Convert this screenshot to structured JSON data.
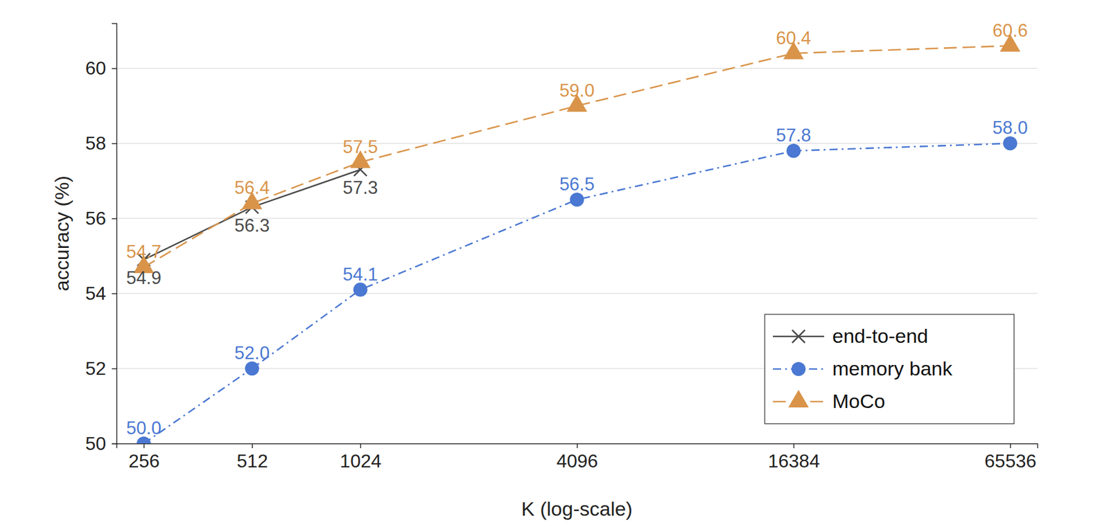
{
  "chart_data": {
    "type": "line",
    "x_label": "K (log-scale)",
    "y_label": "accuracy (%)",
    "x": [
      256,
      512,
      1024,
      4096,
      16384,
      65536
    ],
    "xlim": [
      215,
      78000
    ],
    "xticks": [
      256,
      512,
      1024,
      4096,
      16384,
      65536
    ],
    "ylim": [
      50,
      61.2
    ],
    "yticks": [
      50,
      52,
      54,
      56,
      58,
      60
    ],
    "log": "x",
    "grid": true,
    "legend": "lower right",
    "data_labels": true,
    "series": [
      {
        "name": "end-to-end",
        "color": "#4a4a4a",
        "marker": "x",
        "line_style": "solid",
        "values": [
          54.9,
          56.3,
          57.3,
          null,
          null,
          null
        ],
        "value_labels": [
          "54.9",
          "56.3",
          "57.3",
          null,
          null,
          null
        ]
      },
      {
        "name": "memory bank",
        "color": "#4a78d2",
        "marker": "circle",
        "line_style": "dashdot",
        "values": [
          50.0,
          52.0,
          54.1,
          56.5,
          57.8,
          58.0
        ],
        "value_labels": [
          "50.0",
          "52.0",
          "54.1",
          "56.5",
          "57.8",
          "58.0"
        ]
      },
      {
        "name": "MoCo",
        "color": "#d9944a",
        "marker": "triangle",
        "line_style": "dashed",
        "values": [
          54.7,
          56.4,
          57.5,
          59.0,
          60.4,
          60.6
        ],
        "value_labels": [
          "54.7",
          "56.4",
          "57.5",
          "59.0",
          "60.4",
          "60.6"
        ]
      }
    ]
  }
}
